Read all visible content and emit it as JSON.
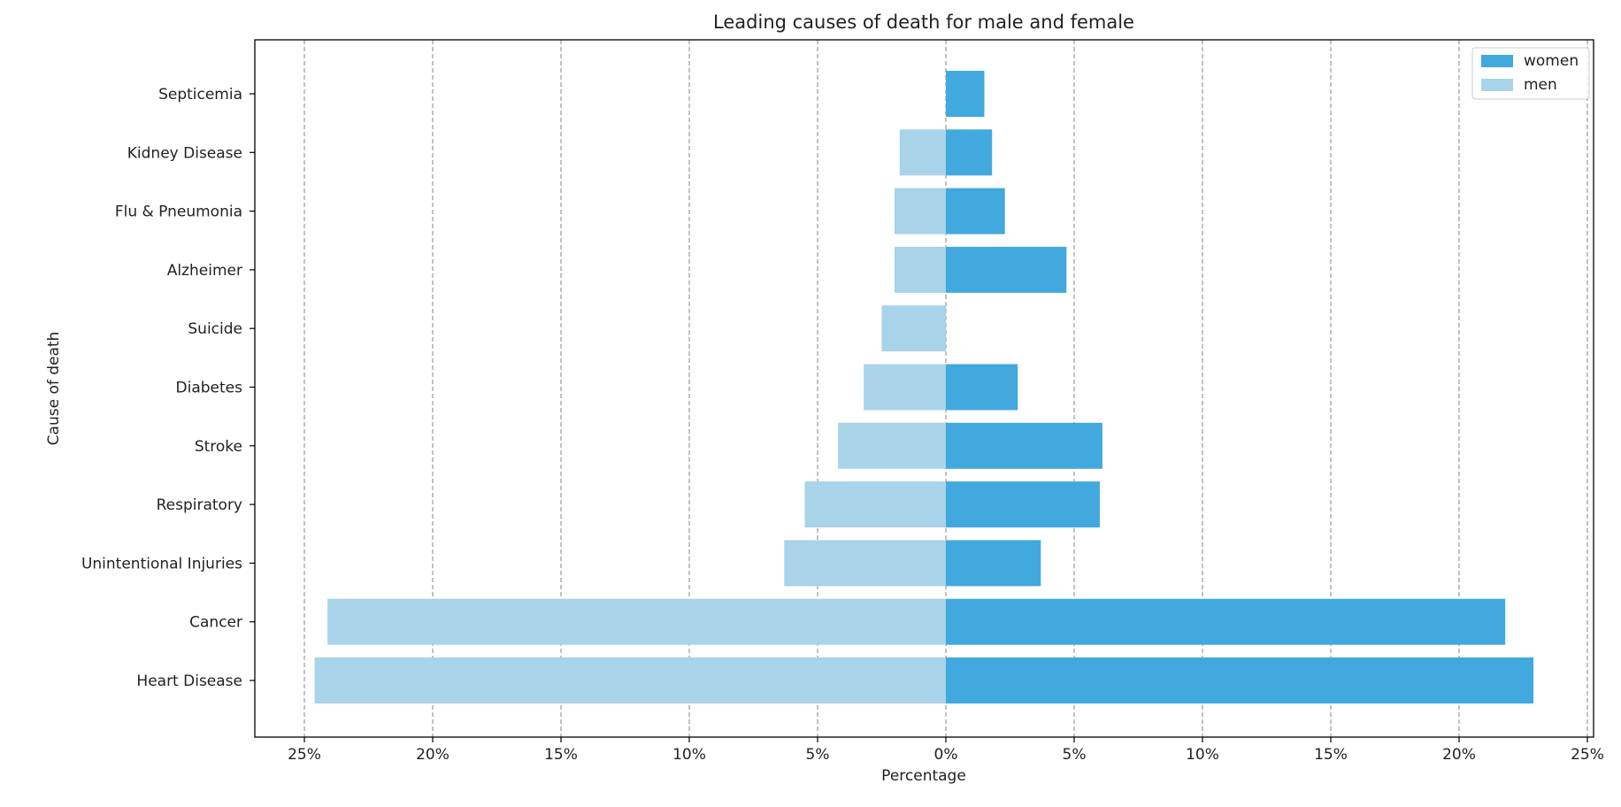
{
  "chart_data": {
    "type": "bar",
    "orientation": "horizontal",
    "layout": "population-pyramid",
    "title": "Leading causes of death for male and female",
    "xlabel": "Percentage",
    "ylabel": "Cause of death",
    "xlim": [
      -25,
      25
    ],
    "x_ticks": [
      -25,
      -20,
      -15,
      -10,
      -5,
      0,
      5,
      10,
      15,
      20,
      25
    ],
    "x_tick_labels": [
      "25%",
      "20%",
      "15%",
      "10%",
      "5%",
      "0%",
      "5%",
      "10%",
      "15%",
      "20%",
      "25%"
    ],
    "grid": "vertical dashed",
    "legend_position": "top-right",
    "categories": [
      "Heart Disease",
      "Cancer",
      "Unintentional Injuries",
      "Respiratory",
      "Stroke",
      "Diabetes",
      "Suicide",
      "Alzheimer",
      "Flu & Pneumonia",
      "Kidney Disease",
      "Septicemia"
    ],
    "series": [
      {
        "name": "women",
        "side": "right",
        "color": "#41a9de",
        "values": [
          22.9,
          21.8,
          3.7,
          6.0,
          6.1,
          2.8,
          0,
          4.7,
          2.3,
          1.8,
          1.5
        ]
      },
      {
        "name": "men",
        "side": "left",
        "color": "#a8d3e9",
        "values": [
          24.6,
          24.1,
          6.3,
          5.5,
          4.2,
          3.2,
          2.5,
          2.0,
          2.0,
          1.8,
          0
        ]
      }
    ]
  }
}
